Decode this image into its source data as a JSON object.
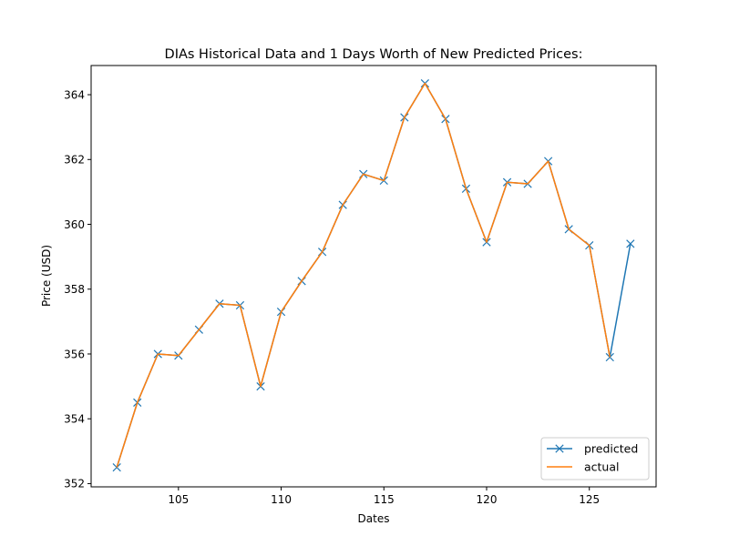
{
  "chart_data": {
    "type": "line",
    "title": "DIAs Historical Data and 1 Days Worth of New Predicted Prices:",
    "xlabel": "Dates",
    "ylabel": "Price (USD)",
    "xlim": [
      100.75,
      128.25
    ],
    "ylim": [
      351.9,
      364.9
    ],
    "xticks": [
      105,
      110,
      115,
      120,
      125
    ],
    "yticks": [
      352,
      354,
      356,
      358,
      360,
      362,
      364
    ],
    "grid": false,
    "legend_position": "lower-right",
    "series": [
      {
        "name": "predicted",
        "color": "#1f77b4",
        "marker": "x",
        "x": [
          102,
          103,
          104,
          105,
          106,
          107,
          108,
          109,
          110,
          111,
          112,
          113,
          114,
          115,
          116,
          117,
          118,
          119,
          120,
          121,
          122,
          123,
          124,
          125,
          126,
          127
        ],
        "y": [
          352.5,
          354.5,
          356.0,
          355.95,
          356.75,
          357.55,
          357.5,
          355.0,
          357.3,
          358.25,
          359.15,
          360.6,
          361.55,
          361.35,
          363.3,
          364.35,
          363.25,
          361.1,
          359.45,
          361.3,
          361.25,
          361.95,
          359.85,
          359.35,
          355.9,
          359.4
        ]
      },
      {
        "name": "actual",
        "color": "#ff7f0e",
        "marker": "none",
        "x": [
          102,
          103,
          104,
          105,
          106,
          107,
          108,
          109,
          110,
          111,
          112,
          113,
          114,
          115,
          116,
          117,
          118,
          119,
          120,
          121,
          122,
          123,
          124,
          125,
          126
        ],
        "y": [
          352.5,
          354.5,
          356.0,
          355.95,
          356.75,
          357.55,
          357.5,
          355.0,
          357.3,
          358.25,
          359.15,
          360.6,
          361.55,
          361.35,
          363.3,
          364.35,
          363.25,
          361.1,
          359.45,
          361.3,
          361.25,
          361.95,
          359.85,
          359.35,
          355.9
        ]
      }
    ]
  }
}
